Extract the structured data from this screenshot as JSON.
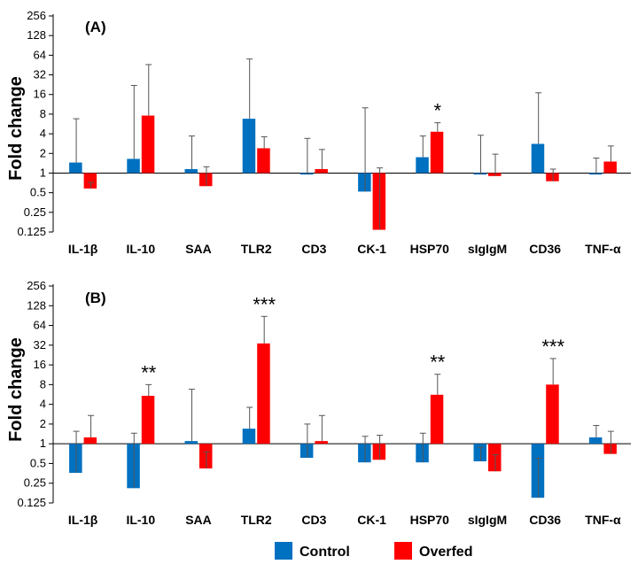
{
  "chart_data": [
    {
      "type": "bar",
      "panel_label": "(A)",
      "ylabel": "Fold change",
      "yscale": "log2",
      "ylim": [
        0.125,
        256
      ],
      "yticks": [
        "0.125",
        "0.25",
        "0.5",
        "1",
        "2",
        "4",
        "8",
        "16",
        "32",
        "64",
        "128",
        "256"
      ],
      "categories": [
        "IL-1β",
        "IL-10",
        "SAA",
        "TLR2",
        "CD3",
        "CK-1",
        "HSP70",
        "sIgIgM",
        "CD36",
        "TNF-α"
      ],
      "series": [
        {
          "name": "Control",
          "color": "#0070c0",
          "values": [
            1.45,
            1.65,
            1.15,
            6.8,
            0.95,
            0.52,
            1.75,
            0.95,
            2.8,
            0.95
          ],
          "error_upper": [
            6.8,
            22,
            3.7,
            56,
            3.4,
            10,
            3.7,
            3.8,
            17,
            1.7
          ]
        },
        {
          "name": "Overfed",
          "color": "#ff0000",
          "values": [
            0.58,
            7.6,
            0.63,
            2.4,
            1.15,
            0.135,
            4.3,
            0.9,
            0.75,
            1.5
          ],
          "error_upper": [
            0.72,
            46,
            1.25,
            3.6,
            2.3,
            1.2,
            5.9,
            1.95,
            1.15,
            2.6
          ]
        }
      ],
      "significance": [
        {
          "category": "HSP70",
          "label": "*"
        }
      ],
      "grid": false
    },
    {
      "type": "bar",
      "panel_label": "(B)",
      "ylabel": "Fold change",
      "yscale": "log2",
      "ylim": [
        0.125,
        256
      ],
      "yticks": [
        "0.125",
        "0.25",
        "0.5",
        "1",
        "2",
        "4",
        "8",
        "16",
        "32",
        "64",
        "128",
        "256"
      ],
      "categories": [
        "IL-1β",
        "IL-10",
        "SAA",
        "TLR2",
        "CD3",
        "CK-1",
        "HSP70",
        "sIgIgM",
        "CD36",
        "TNF-α"
      ],
      "series": [
        {
          "name": "Control",
          "color": "#0070c0",
          "values": [
            0.36,
            0.21,
            1.1,
            1.7,
            0.61,
            0.52,
            0.52,
            0.54,
            0.15,
            1.25
          ],
          "error_upper": [
            1.55,
            1.45,
            6.8,
            3.6,
            2.0,
            1.3,
            1.45,
            0.88,
            0.6,
            1.9
          ]
        },
        {
          "name": "Overfed",
          "color": "#ff0000",
          "values": [
            1.25,
            5.4,
            0.42,
            34,
            1.1,
            0.57,
            5.6,
            0.38,
            8.0,
            0.7
          ],
          "error_upper": [
            2.7,
            8.0,
            0.75,
            88,
            2.7,
            1.35,
            11.5,
            0.68,
            20,
            1.55
          ]
        }
      ],
      "significance": [
        {
          "category": "IL-10",
          "label": "**"
        },
        {
          "category": "TLR2",
          "label": "***"
        },
        {
          "category": "HSP70",
          "label": "**"
        },
        {
          "category": "CD36",
          "label": "***"
        }
      ],
      "grid": false
    }
  ],
  "legend": {
    "placement": "bottom-center",
    "items": [
      {
        "label": "Control",
        "color": "#0070c0"
      },
      {
        "label": "Overfed",
        "color": "#ff0000"
      }
    ]
  }
}
